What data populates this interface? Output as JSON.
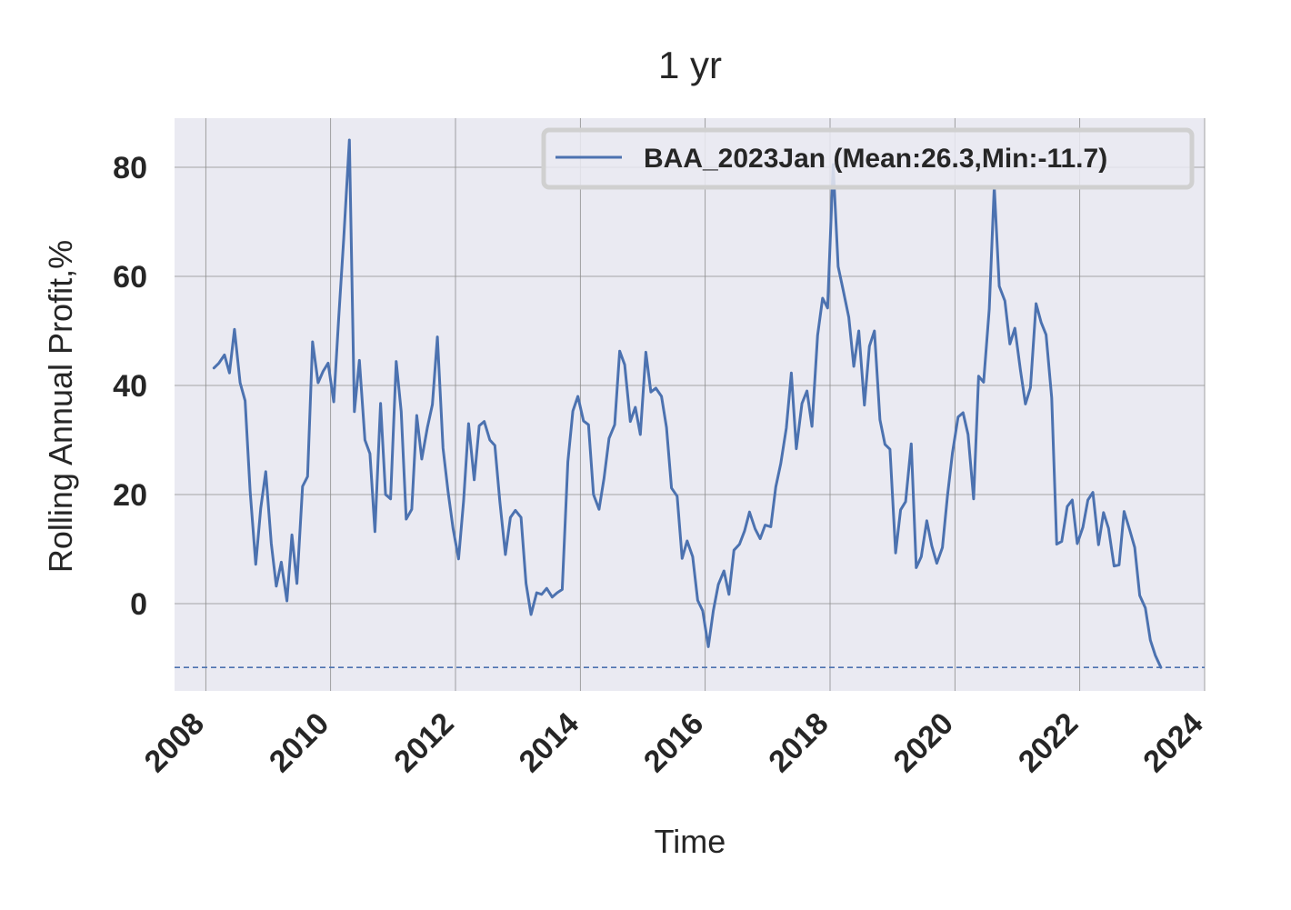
{
  "chart_data": {
    "type": "line",
    "title": "1 yr",
    "xlabel": "Time",
    "ylabel": "Rolling Annual Profit,%",
    "xlim": [
      2007.5,
      2024.0
    ],
    "ylim": [
      -16,
      89
    ],
    "x_ticks": [
      2008,
      2010,
      2012,
      2014,
      2016,
      2018,
      2020,
      2022,
      2024
    ],
    "x_tick_labels": [
      "2008",
      "2010",
      "2012",
      "2014",
      "2016",
      "2018",
      "2020",
      "2022",
      "2024"
    ],
    "y_ticks": [
      0,
      20,
      40,
      60,
      80
    ],
    "y_tick_labels": [
      "0",
      "20",
      "40",
      "60",
      "80"
    ],
    "grid": true,
    "background_color": "#eaeaf2",
    "grid_color": "#8c8c8c",
    "legend": {
      "position": "top-right"
    },
    "series": [
      {
        "name": "BAA_2023Jan (Mean:26.3,Min:-11.7)",
        "color": "#4c72b0",
        "x": [
          2008.13,
          2008.21,
          2008.3,
          2008.38,
          2008.46,
          2008.55,
          2008.63,
          2008.71,
          2008.8,
          2008.88,
          2008.96,
          2009.05,
          2009.13,
          2009.21,
          2009.3,
          2009.38,
          2009.46,
          2009.55,
          2009.63,
          2009.71,
          2009.8,
          2009.88,
          2009.96,
          2010.05,
          2010.13,
          2010.21,
          2010.3,
          2010.38,
          2010.46,
          2010.55,
          2010.63,
          2010.71,
          2010.8,
          2010.88,
          2010.96,
          2011.05,
          2011.13,
          2011.21,
          2011.3,
          2011.38,
          2011.46,
          2011.55,
          2011.63,
          2011.71,
          2011.8,
          2011.88,
          2011.96,
          2012.05,
          2012.13,
          2012.21,
          2012.3,
          2012.38,
          2012.46,
          2012.55,
          2012.63,
          2012.71,
          2012.8,
          2012.88,
          2012.96,
          2013.05,
          2013.13,
          2013.21,
          2013.3,
          2013.38,
          2013.46,
          2013.55,
          2013.63,
          2013.71,
          2013.8,
          2013.88,
          2013.96,
          2014.05,
          2014.13,
          2014.21,
          2014.3,
          2014.38,
          2014.46,
          2014.55,
          2014.63,
          2014.71,
          2014.8,
          2014.88,
          2014.96,
          2015.05,
          2015.13,
          2015.21,
          2015.3,
          2015.38,
          2015.46,
          2015.55,
          2015.63,
          2015.71,
          2015.8,
          2015.88,
          2015.96,
          2016.05,
          2016.13,
          2016.21,
          2016.3,
          2016.38,
          2016.46,
          2016.55,
          2016.63,
          2016.71,
          2016.8,
          2016.88,
          2016.96,
          2017.05,
          2017.13,
          2017.21,
          2017.3,
          2017.38,
          2017.46,
          2017.55,
          2017.63,
          2017.71,
          2017.8,
          2017.88,
          2017.96,
          2018.05,
          2018.13,
          2018.21,
          2018.3,
          2018.38,
          2018.46,
          2018.55,
          2018.63,
          2018.71,
          2018.8,
          2018.88,
          2018.96,
          2019.05,
          2019.13,
          2019.21,
          2019.3,
          2019.38,
          2019.46,
          2019.55,
          2019.63,
          2019.71,
          2019.8,
          2019.88,
          2019.96,
          2020.05,
          2020.13,
          2020.21,
          2020.3,
          2020.38,
          2020.46,
          2020.55,
          2020.63,
          2020.71,
          2020.8,
          2020.88,
          2020.96,
          2021.05,
          2021.13,
          2021.21,
          2021.3,
          2021.38,
          2021.46,
          2021.55,
          2021.63,
          2021.71,
          2021.8,
          2021.88,
          2021.96,
          2022.05,
          2022.13,
          2022.21,
          2022.3,
          2022.38,
          2022.46,
          2022.55,
          2022.63,
          2022.71,
          2022.8,
          2022.88,
          2022.96,
          2023.05,
          2023.13,
          2023.21,
          2023.3
        ],
        "values": [
          43.2,
          44.1,
          45.6,
          42.3,
          50.3,
          40.5,
          37.2,
          20.7,
          7.2,
          17.5,
          24.2,
          11.0,
          3.2,
          7.6,
          0.5,
          12.6,
          3.7,
          21.5,
          23.3,
          48.0,
          40.5,
          42.6,
          44.1,
          37.0,
          52.5,
          67.0,
          85.0,
          35.2,
          44.6,
          30.0,
          27.5,
          13.2,
          36.7,
          20.0,
          19.2,
          44.4,
          35.2,
          15.5,
          17.3,
          34.5,
          26.5,
          32.3,
          36.5,
          48.9,
          28.5,
          20.6,
          13.8,
          8.2,
          18.8,
          33.0,
          22.7,
          32.6,
          33.4,
          30.0,
          29.0,
          18.7,
          9.0,
          15.8,
          17.1,
          15.8,
          3.7,
          -2.0,
          2.0,
          1.7,
          2.8,
          1.2,
          2.0,
          2.6,
          26.0,
          35.3,
          38.0,
          33.5,
          32.8,
          20.0,
          17.3,
          23.0,
          30.3,
          32.8,
          46.3,
          43.8,
          33.4,
          36.0,
          31.0,
          46.1,
          38.8,
          39.5,
          38.0,
          32.3,
          21.2,
          19.7,
          8.3,
          11.5,
          8.6,
          0.6,
          -1.3,
          -7.9,
          -1.3,
          3.5,
          6.0,
          1.7,
          9.8,
          10.9,
          13.3,
          16.8,
          13.7,
          11.9,
          14.4,
          14.1,
          21.4,
          25.7,
          32.2,
          42.3,
          28.4,
          36.7,
          39.0,
          32.5,
          49.2,
          56.0,
          54.2,
          80.5,
          61.8,
          57.5,
          52.5,
          43.5,
          50.0,
          36.4,
          47.2,
          50.0,
          33.7,
          29.2,
          28.3,
          9.3,
          17.2,
          18.7,
          29.3,
          6.6,
          8.6,
          15.2,
          10.6,
          7.4,
          10.3,
          19.7,
          27.6,
          34.2,
          35.0,
          31.0,
          19.2,
          41.7,
          40.6,
          54.0,
          76.5,
          58.2,
          55.5,
          47.6,
          50.5,
          42.8,
          36.6,
          39.6,
          55.0,
          51.6,
          49.3,
          37.7,
          10.9,
          11.4,
          17.8,
          19.0,
          11.0,
          14.0,
          19.0,
          20.4,
          10.8,
          16.7,
          13.8,
          6.9,
          7.1,
          16.9,
          13.5,
          10.3,
          1.5,
          -0.8,
          -6.7,
          -9.5,
          -11.7
        ]
      }
    ],
    "reference_lines": [
      {
        "axis": "y",
        "value": -11.7,
        "style": "dashed",
        "color": "#4c72b0"
      }
    ]
  }
}
